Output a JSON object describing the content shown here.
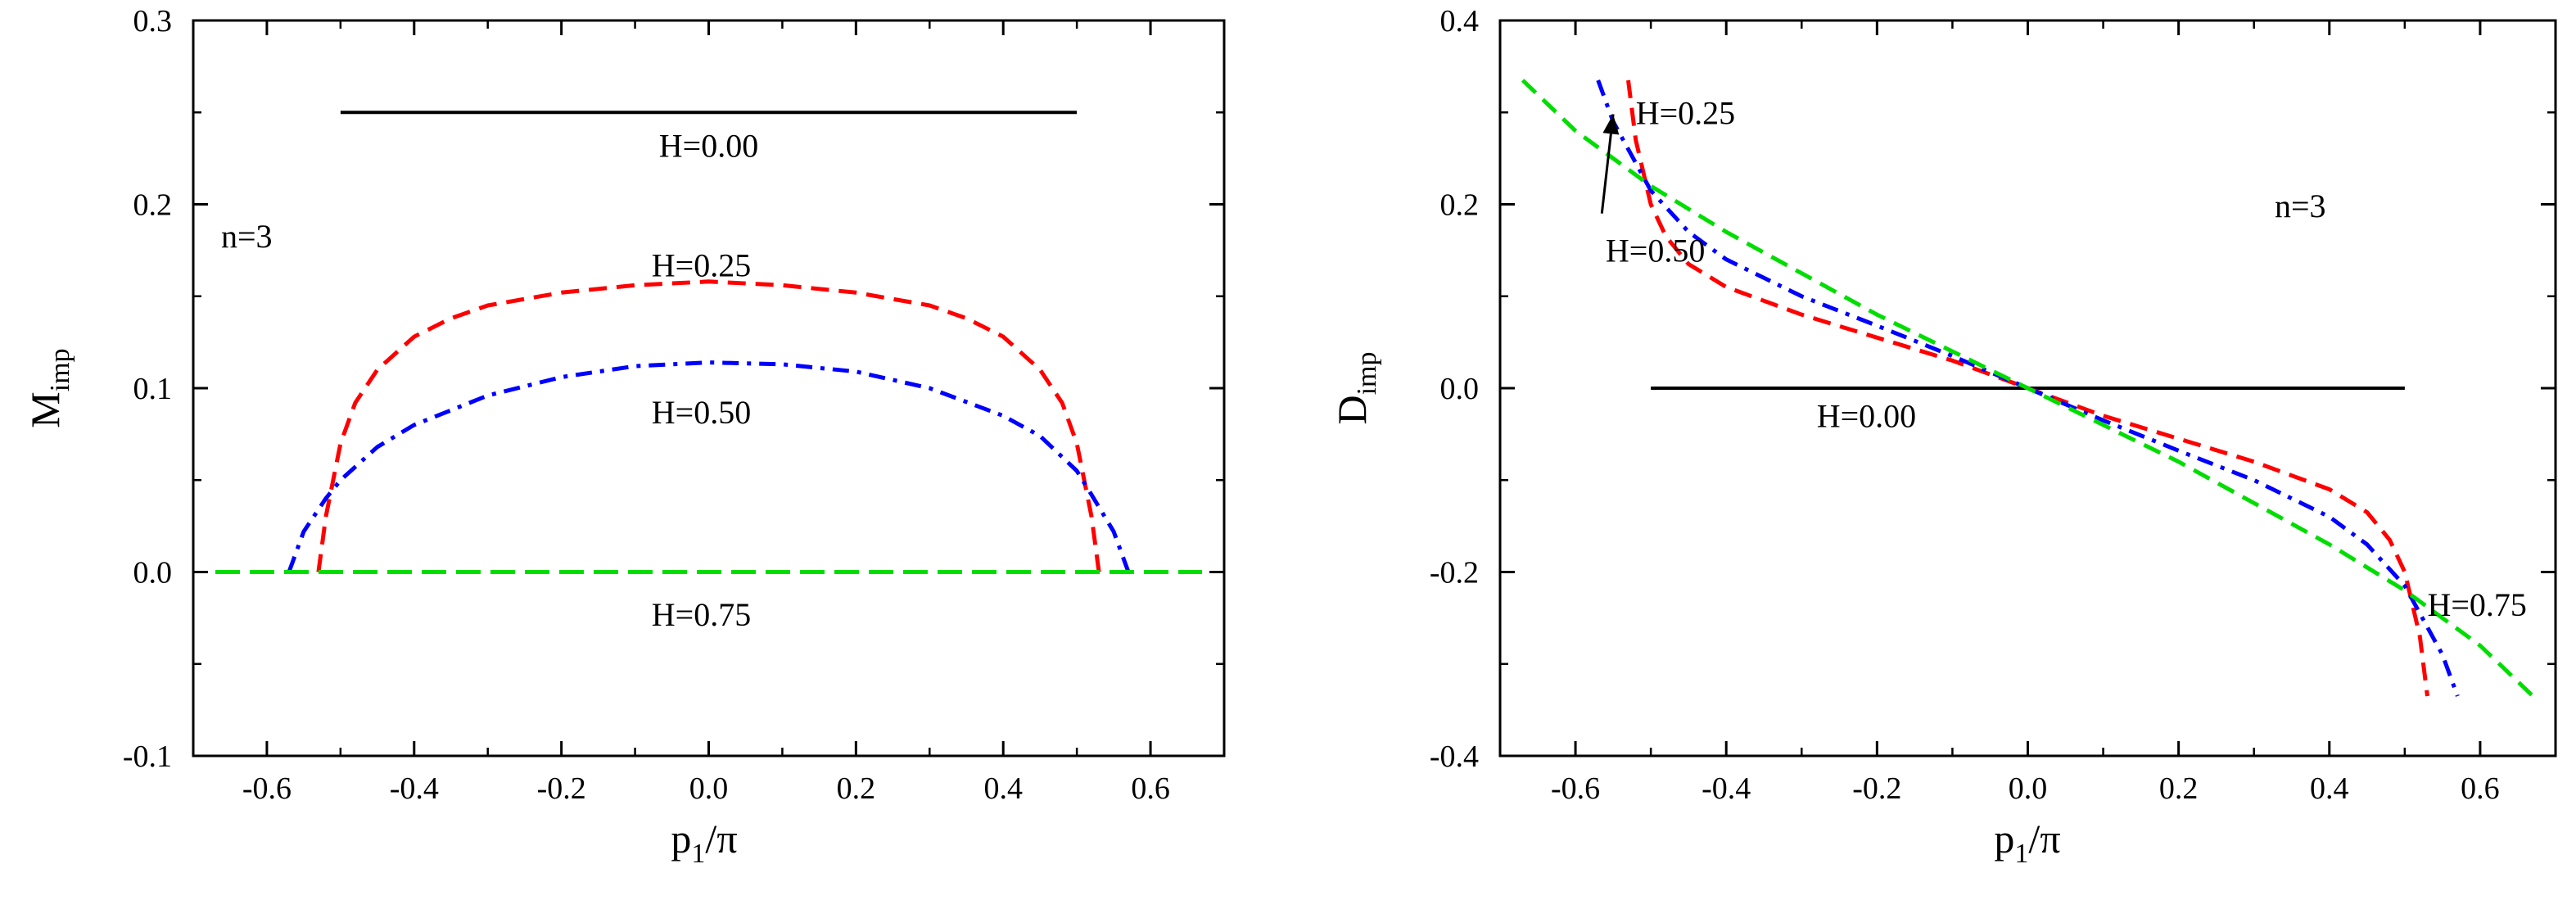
{
  "chart_data": [
    {
      "type": "line",
      "panel": "left",
      "xlabel": "p1/π",
      "xlabel_main": "p",
      "xlabel_sub": "1",
      "xlabel_tail": "/π",
      "ylabel": "Mimp",
      "ylabel_main": "M",
      "ylabel_sub": "imp",
      "xlim": [
        -0.7,
        0.7
      ],
      "ylim": [
        -0.1,
        0.3
      ],
      "xticks": [
        "-0.6",
        "-0.4",
        "-0.2",
        "0.0",
        "0.2",
        "0.4",
        "0.6"
      ],
      "xtick_values": [
        -0.6,
        -0.4,
        -0.2,
        0.0,
        0.2,
        0.4,
        0.6
      ],
      "yticks": [
        "-0.1",
        "0.0",
        "0.1",
        "0.2",
        "0.3"
      ],
      "ytick_values": [
        -0.1,
        0.0,
        0.1,
        0.2,
        0.3
      ],
      "grid": false,
      "panel_label": "n=3",
      "series": [
        {
          "name": "H=0.00",
          "color": "#000000",
          "dash": "solid",
          "x": [
            -0.5,
            0.5
          ],
          "y": [
            0.25,
            0.25
          ]
        },
        {
          "name": "H=0.25",
          "color": "#ff0000",
          "dash": "dashed",
          "x": [
            -0.53,
            -0.52,
            -0.5,
            -0.48,
            -0.45,
            -0.4,
            -0.35,
            -0.3,
            -0.2,
            -0.1,
            0.0,
            0.1,
            0.2,
            0.3,
            0.35,
            0.4,
            0.45,
            0.48,
            0.5,
            0.52,
            0.53
          ],
          "y": [
            0.0,
            0.03,
            0.07,
            0.092,
            0.11,
            0.128,
            0.138,
            0.145,
            0.152,
            0.156,
            0.158,
            0.156,
            0.152,
            0.145,
            0.138,
            0.128,
            0.11,
            0.092,
            0.07,
            0.03,
            0.0
          ]
        },
        {
          "name": "H=0.50",
          "color": "#0000ff",
          "dash": "dashdot",
          "x": [
            -0.57,
            -0.55,
            -0.52,
            -0.5,
            -0.45,
            -0.4,
            -0.3,
            -0.2,
            -0.1,
            0.0,
            0.1,
            0.2,
            0.3,
            0.4,
            0.45,
            0.5,
            0.52,
            0.55,
            0.57
          ],
          "y": [
            0.0,
            0.022,
            0.04,
            0.05,
            0.068,
            0.08,
            0.096,
            0.106,
            0.112,
            0.114,
            0.113,
            0.109,
            0.1,
            0.085,
            0.074,
            0.055,
            0.042,
            0.022,
            0.0
          ]
        },
        {
          "name": "H=0.75",
          "color": "#00dd00",
          "dash": "longdash",
          "x": [
            -0.67,
            0.67
          ],
          "y": [
            0.0,
            0.0
          ]
        }
      ],
      "annotations": [
        {
          "text": "H=0.00",
          "x": 0.0,
          "y": 0.232
        },
        {
          "text": "H=0.25",
          "x": -0.01,
          "y": 0.167
        },
        {
          "text": "H=0.50",
          "x": -0.01,
          "y": 0.087
        },
        {
          "text": "H=0.75",
          "x": -0.01,
          "y": -0.023
        }
      ]
    },
    {
      "type": "line",
      "panel": "right",
      "xlabel": "p1/π",
      "xlabel_main": "p",
      "xlabel_sub": "1",
      "xlabel_tail": "/π",
      "ylabel": "Dimp",
      "ylabel_main": "D",
      "ylabel_sub": "imp",
      "xlim": [
        -0.7,
        0.7
      ],
      "ylim": [
        -0.4,
        0.4
      ],
      "xticks": [
        "-0.6",
        "-0.4",
        "-0.2",
        "0.0",
        "0.2",
        "0.4",
        "0.6"
      ],
      "xtick_values": [
        -0.6,
        -0.4,
        -0.2,
        0.0,
        0.2,
        0.4,
        0.6
      ],
      "yticks": [
        "-0.4",
        "-0.2",
        "0.0",
        "0.2",
        "0.4"
      ],
      "ytick_values": [
        -0.4,
        -0.2,
        0.0,
        0.2,
        0.4
      ],
      "grid": false,
      "panel_label": "n=3",
      "series": [
        {
          "name": "H=0.00",
          "color": "#000000",
          "dash": "solid",
          "x": [
            -0.5,
            0.5
          ],
          "y": [
            0.0,
            0.0
          ]
        },
        {
          "name": "H=0.25",
          "color": "#ff0000",
          "dash": "dashed",
          "x": [
            -0.53,
            -0.52,
            -0.5,
            -0.48,
            -0.45,
            -0.4,
            -0.3,
            -0.2,
            -0.1,
            0.0,
            0.1,
            0.2,
            0.3,
            0.4,
            0.45,
            0.48,
            0.5,
            0.52,
            0.53
          ],
          "y": [
            0.335,
            0.27,
            0.2,
            0.165,
            0.135,
            0.11,
            0.08,
            0.055,
            0.03,
            0.0,
            -0.03,
            -0.055,
            -0.08,
            -0.11,
            -0.135,
            -0.165,
            -0.2,
            -0.27,
            -0.335
          ]
        },
        {
          "name": "H=0.50",
          "color": "#0000ff",
          "dash": "dashdot",
          "x": [
            -0.57,
            -0.55,
            -0.52,
            -0.5,
            -0.45,
            -0.4,
            -0.3,
            -0.2,
            -0.1,
            0.0,
            0.1,
            0.2,
            0.3,
            0.4,
            0.45,
            0.5,
            0.52,
            0.55,
            0.57
          ],
          "y": [
            0.335,
            0.29,
            0.245,
            0.215,
            0.17,
            0.14,
            0.1,
            0.068,
            0.035,
            0.0,
            -0.035,
            -0.068,
            -0.1,
            -0.14,
            -0.17,
            -0.215,
            -0.245,
            -0.29,
            -0.335
          ]
        },
        {
          "name": "H=0.75",
          "color": "#00dd00",
          "dash": "dashed",
          "x": [
            -0.67,
            -0.6,
            -0.5,
            -0.4,
            -0.3,
            -0.2,
            -0.1,
            0.0,
            0.1,
            0.2,
            0.3,
            0.4,
            0.5,
            0.6,
            0.67
          ],
          "y": [
            0.335,
            0.28,
            0.22,
            0.17,
            0.125,
            0.08,
            0.04,
            0.0,
            -0.04,
            -0.08,
            -0.125,
            -0.17,
            -0.22,
            -0.28,
            -0.335
          ]
        }
      ],
      "annotations": [
        {
          "text": "H=0.25",
          "x": -0.52,
          "y": 0.3
        },
        {
          "text": "H=0.50",
          "x": -0.56,
          "y": 0.15
        },
        {
          "text": "H=0.00",
          "x": -0.28,
          "y": -0.03
        },
        {
          "text": "H=0.75",
          "x": 0.53,
          "y": -0.235
        }
      ],
      "arrow": {
        "from_x": -0.565,
        "from_y": 0.19,
        "to_x": -0.55,
        "to_y": 0.298
      }
    }
  ]
}
